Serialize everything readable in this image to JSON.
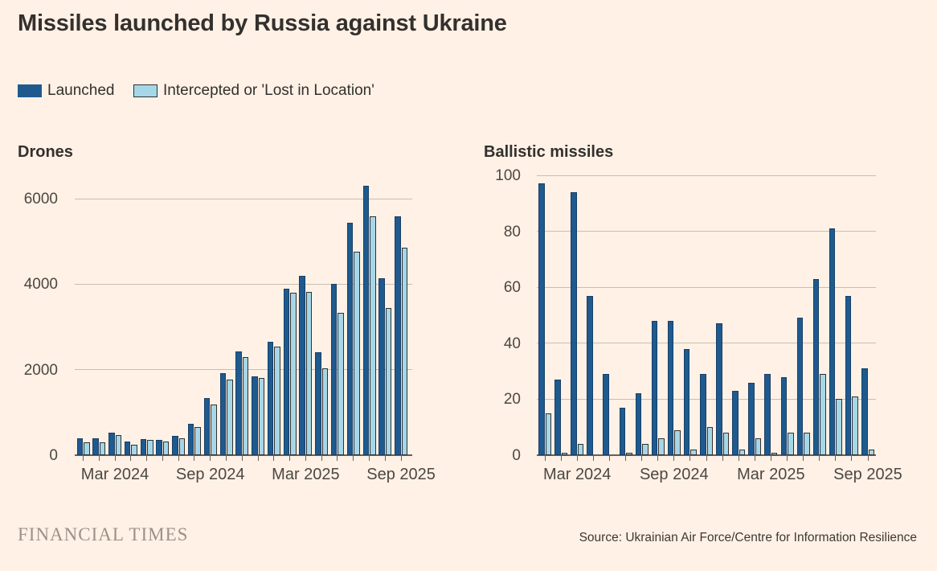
{
  "title": "Missiles launched by Russia against Ukraine",
  "legend": [
    {
      "label": "Launched",
      "color": "#1F5A8F"
    },
    {
      "label": "Intercepted or 'Lost in Location'",
      "color": "#A5D7E8"
    }
  ],
  "colors": {
    "background": "#FFF1E5",
    "launched": "#1F5A8F",
    "launched_border": "#173F66",
    "intercepted": "#A5D7E8",
    "intercepted_border": "#33302E",
    "gridline": "#C9BDB1",
    "axis": "#66605C",
    "axis_label": "#4D4742",
    "text": "#33302E"
  },
  "footer": {
    "brand": "FINANCIAL TIMES",
    "source": "Source: Ukrainian Air Force/Centre for Information Resilience"
  },
  "chart_data": [
    {
      "type": "bar",
      "title": "Drones",
      "categories": [
        "Jan 2024",
        "Feb 2024",
        "Mar 2024",
        "Apr 2024",
        "May 2024",
        "Jun 2024",
        "Jul 2024",
        "Aug 2024",
        "Sep 2024",
        "Oct 2024",
        "Nov 2024",
        "Dec 2024",
        "Jan 2025",
        "Feb 2025",
        "Mar 2025",
        "Apr 2025",
        "May 2025",
        "Jun 2025",
        "Jul 2025",
        "Aug 2025",
        "Sep 2025"
      ],
      "series": [
        {
          "name": "Launched",
          "values": [
            400,
            400,
            530,
            320,
            380,
            350,
            450,
            740,
            1340,
            1910,
            2430,
            1850,
            2650,
            3900,
            4200,
            2400,
            4010,
            5430,
            6310,
            4140,
            5590
          ]
        },
        {
          "name": "Intercepted or 'Lost in Location'",
          "values": [
            300,
            300,
            470,
            250,
            350,
            320,
            390,
            660,
            1180,
            1760,
            2300,
            1810,
            2540,
            3790,
            3820,
            2030,
            3320,
            4760,
            5580,
            3450,
            4850
          ]
        }
      ],
      "ylim": [
        0,
        6400
      ],
      "yticks": [
        0,
        2000,
        4000,
        6000
      ],
      "x_tick_labels": [
        {
          "index": 2,
          "label": "Mar 2024"
        },
        {
          "index": 8,
          "label": "Sep 2024"
        },
        {
          "index": 14,
          "label": "Mar 2025"
        },
        {
          "index": 20,
          "label": "Sep 2025"
        }
      ],
      "grid": true,
      "legend_position": "top"
    },
    {
      "type": "bar",
      "title": "Ballistic missiles",
      "categories": [
        "Jan 2024",
        "Feb 2024",
        "Mar 2024",
        "Apr 2024",
        "May 2024",
        "Jun 2024",
        "Jul 2024",
        "Aug 2024",
        "Sep 2024",
        "Oct 2024",
        "Nov 2024",
        "Dec 2024",
        "Jan 2025",
        "Feb 2025",
        "Mar 2025",
        "Apr 2025",
        "May 2025",
        "Jun 2025",
        "Jul 2025",
        "Aug 2025",
        "Sep 2025"
      ],
      "series": [
        {
          "name": "Launched",
          "values": [
            97,
            27,
            94,
            57,
            29,
            17,
            22,
            48,
            48,
            38,
            29,
            47,
            23,
            26,
            29,
            28,
            49,
            63,
            81,
            57,
            31
          ]
        },
        {
          "name": "Intercepted or 'Lost in Location'",
          "values": [
            15,
            1,
            4,
            0,
            0,
            1,
            4,
            6,
            9,
            2,
            10,
            8,
            2,
            6,
            1,
            8,
            8,
            29,
            20,
            21,
            2
          ]
        }
      ],
      "ylim": [
        0,
        100
      ],
      "yticks": [
        0,
        20,
        40,
        60,
        80,
        100
      ],
      "x_tick_labels": [
        {
          "index": 2,
          "label": "Mar 2024"
        },
        {
          "index": 8,
          "label": "Sep 2024"
        },
        {
          "index": 14,
          "label": "Mar 2025"
        },
        {
          "index": 20,
          "label": "Sep 2025"
        }
      ],
      "grid": true,
      "legend_position": "top"
    }
  ]
}
